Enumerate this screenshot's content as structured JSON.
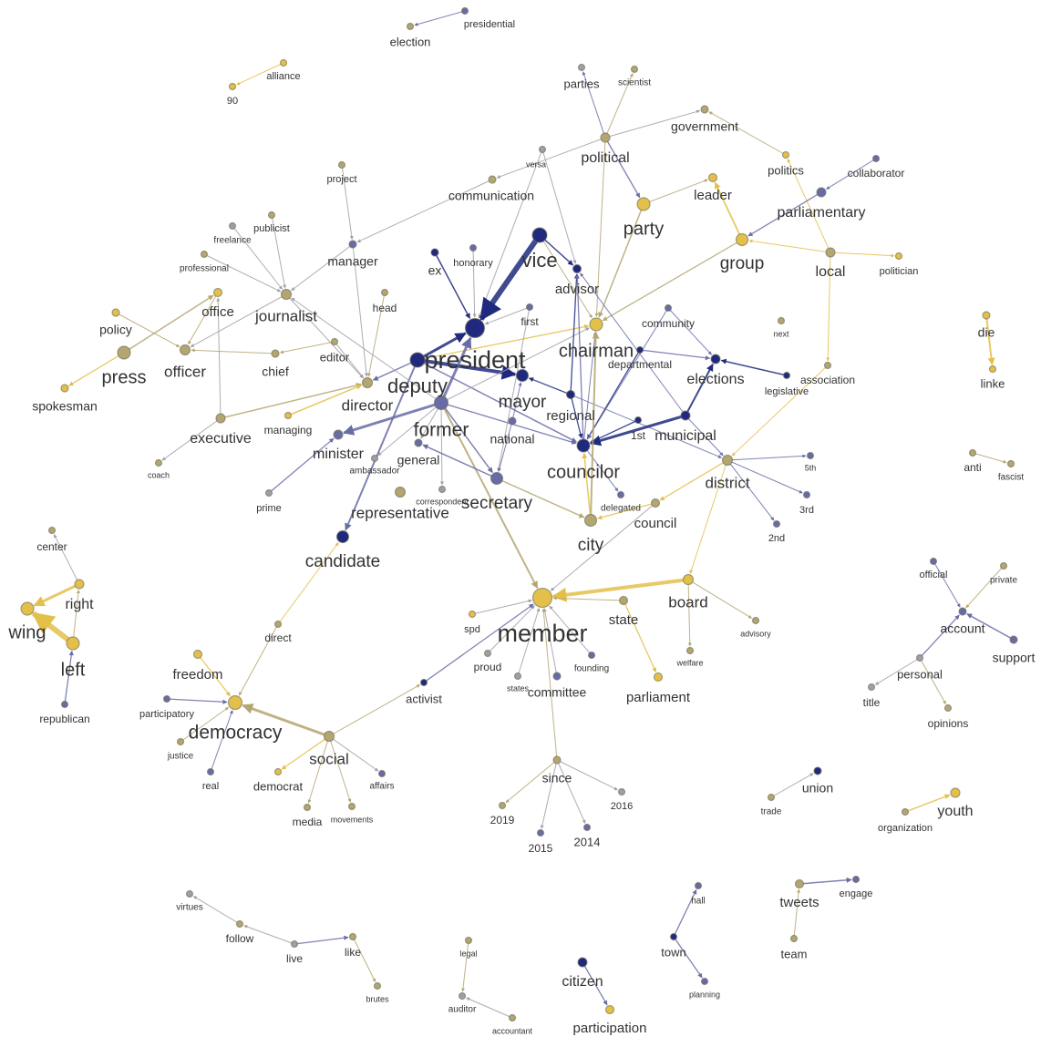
{
  "nodes": [
    "presidential",
    "election",
    "alliance",
    "90",
    "parties",
    "scientist",
    "government",
    "political",
    "versa",
    "politics",
    "collaborator",
    "project",
    "communication",
    "leader",
    "publicist",
    "freelance",
    "parliamentary",
    "party",
    "vice",
    "group",
    "professional",
    "local",
    "politician",
    "manager",
    "ex",
    "honorary",
    "office",
    "journalist",
    "advisor",
    "head",
    "policy",
    "community",
    "first",
    "president",
    "chairman",
    "next",
    "die",
    "editor",
    "press",
    "officer",
    "chief",
    "departmental",
    "elections",
    "deputy",
    "linke",
    "association",
    "legislative",
    "mayor",
    "director",
    "spokesman",
    "former",
    "regional",
    "municipal",
    "managing",
    "national",
    "1st",
    "councilor",
    "executive",
    "minister",
    "general",
    "ambassador",
    "district",
    "5th",
    "secretary",
    "representative",
    "correspondent",
    "delegated",
    "3rd",
    "prime",
    "coach",
    "council",
    "city",
    "2nd",
    "candidate",
    "center",
    "right",
    "board",
    "member",
    "state",
    "official",
    "private",
    "account",
    "wing",
    "spd",
    "advisory",
    "direct",
    "left",
    "support",
    "proud",
    "founding",
    "welfare",
    "personal",
    "freedom",
    "parliament",
    "states",
    "committee",
    "activist",
    "participatory",
    "democracy",
    "title",
    "opinions",
    "republican",
    "justice",
    "social",
    "affairs",
    "real",
    "democrat",
    "since",
    "union",
    "2016",
    "youth",
    "trade",
    "media",
    "movements",
    "2019",
    "organization",
    "2015",
    "2014",
    "hall",
    "engage",
    "tweets",
    "virtues",
    "follow",
    "like",
    "town",
    "team",
    "legal",
    "live",
    "citizen",
    "planning",
    "auditor",
    "brutes",
    "accountant",
    "participation",
    "anti",
    "fascist"
  ]
}
